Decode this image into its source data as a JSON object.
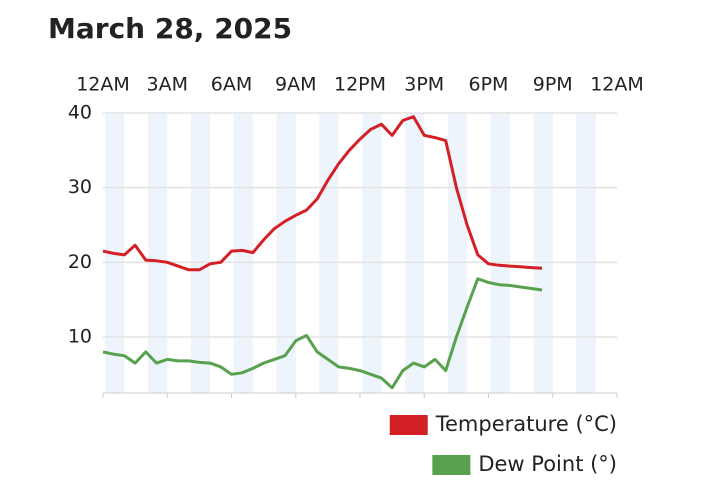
{
  "chart_data": {
    "type": "line",
    "title": "March 28, 2025",
    "x": [
      0,
      0.5,
      1,
      1.5,
      2,
      2.5,
      3,
      3.5,
      4,
      4.5,
      5,
      5.5,
      6,
      6.5,
      7,
      7.5,
      8,
      8.5,
      9,
      9.5,
      10,
      10.5,
      11,
      11.5,
      12,
      12.5,
      13,
      13.5,
      14,
      14.5,
      15,
      15.5,
      16,
      16.5,
      17,
      17.5,
      18,
      18.5,
      19,
      19.5,
      20,
      20.5
    ],
    "series": [
      {
        "name": "Temperature (°C)",
        "color": "#d32027",
        "values": [
          21.5,
          21.2,
          21,
          22.3,
          20.3,
          20.2,
          20,
          19.5,
          19,
          19,
          19.8,
          20,
          21.5,
          21.6,
          21.3,
          23,
          24.5,
          25.5,
          26.3,
          27,
          28.5,
          31,
          33.2,
          35,
          36.5,
          37.8,
          38.5,
          37,
          39,
          39.5,
          37,
          36.7,
          36.3,
          30,
          25,
          21,
          19.8,
          19.6,
          19.5,
          19.4,
          19.3,
          19.2
        ]
      },
      {
        "name": "Dew Point (°)",
        "color": "#58a14e",
        "values": [
          8,
          7.7,
          7.5,
          6.5,
          8,
          6.5,
          7,
          6.8,
          6.8,
          6.6,
          6.5,
          6,
          5,
          5.2,
          5.8,
          6.5,
          7,
          7.5,
          9.5,
          10.2,
          8,
          7,
          6,
          5.8,
          5.5,
          5,
          4.5,
          3.2,
          5.5,
          6.5,
          6,
          7,
          5.5,
          10,
          14,
          17.8,
          17.3,
          17,
          16.9,
          16.7,
          16.5,
          16.3
        ]
      }
    ],
    "xlim": [
      0,
      24
    ],
    "xticks": [
      {
        "value": 0,
        "label": "12AM"
      },
      {
        "value": 3,
        "label": "3AM"
      },
      {
        "value": 6,
        "label": "6AM"
      },
      {
        "value": 9,
        "label": "9AM"
      },
      {
        "value": 12,
        "label": "12PM"
      },
      {
        "value": 15,
        "label": "3PM"
      },
      {
        "value": 18,
        "label": "6PM"
      },
      {
        "value": 21,
        "label": "9PM"
      },
      {
        "value": 24,
        "label": "12AM"
      }
    ],
    "ylim": [
      2.5,
      40
    ],
    "yticks": [
      10,
      20,
      30,
      40
    ],
    "grid": true,
    "legend": "bottom-right"
  }
}
